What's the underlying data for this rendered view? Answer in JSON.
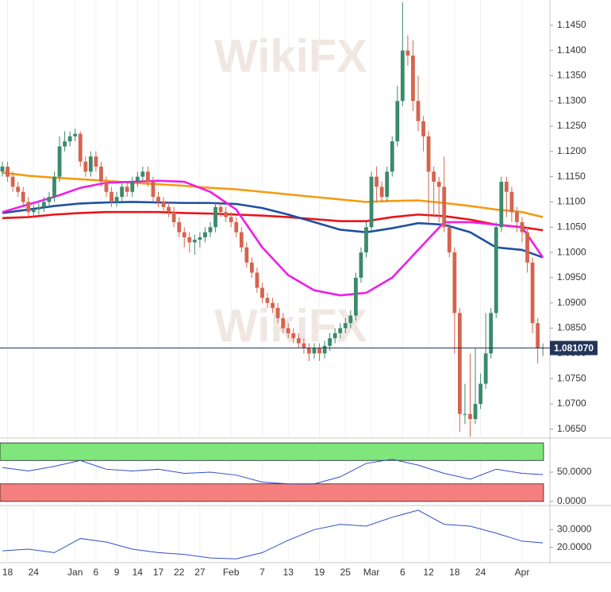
{
  "chart_data": {
    "type": "candlestick",
    "categories": [
      null,
      "18",
      null,
      null,
      null,
      null,
      "24",
      null,
      null,
      null,
      null,
      null,
      null,
      null,
      "Jan",
      null,
      null,
      null,
      "6",
      null,
      null,
      null,
      "9",
      null,
      null,
      null,
      "14",
      null,
      null,
      null,
      "17",
      null,
      null,
      null,
      "22",
      null,
      null,
      null,
      "27",
      null,
      null,
      null,
      null,
      null,
      "Feb",
      null,
      null,
      null,
      null,
      null,
      "7",
      null,
      null,
      null,
      null,
      "13",
      null,
      null,
      null,
      null,
      null,
      "19",
      null,
      null,
      null,
      null,
      "25",
      null,
      null,
      null,
      null,
      "Mar",
      null,
      null,
      null,
      null,
      null,
      "6",
      null,
      null,
      null,
      null,
      "12",
      null,
      null,
      null,
      null,
      "18",
      null,
      null,
      null,
      null,
      "24",
      null,
      null,
      null,
      null,
      null,
      null,
      null,
      "Apr",
      null,
      null,
      null,
      null
    ],
    "open": [
      1.116,
      1.117,
      1.115,
      1.113,
      1.112,
      1.11,
      1.108,
      1.1085,
      1.109,
      1.11,
      1.111,
      1.115,
      1.121,
      1.122,
      1.123,
      1.1235,
      1.118,
      1.116,
      1.119,
      1.117,
      1.114,
      1.112,
      1.11,
      1.111,
      1.113,
      1.112,
      1.114,
      1.115,
      1.116,
      1.114,
      1.111,
      1.11,
      1.109,
      1.108,
      1.106,
      1.104,
      1.103,
      1.102,
      1.1025,
      1.103,
      1.104,
      1.105,
      1.109,
      1.108,
      1.107,
      1.106,
      1.104,
      1.101,
      1.098,
      1.096,
      1.093,
      1.091,
      1.09,
      1.089,
      1.087,
      1.085,
      1.084,
      1.083,
      1.082,
      1.081,
      1.08,
      1.081,
      1.08,
      1.0815,
      1.083,
      1.084,
      1.085,
      1.086,
      1.0875,
      1.095,
      1.1,
      1.105,
      1.115,
      1.113,
      1.111,
      1.116,
      1.122,
      1.13,
      1.14,
      1.139,
      1.13,
      1.126,
      1.123,
      1.116,
      1.114,
      1.113,
      1.105,
      1.1,
      1.088,
      1.068,
      1.068,
      1.067,
      1.07,
      1.074,
      1.08,
      1.088,
      1.105,
      1.114,
      1.112,
      1.108,
      1.106,
      1.104,
      1.098,
      1.086,
      1.081
    ],
    "high": [
      1.118,
      1.118,
      1.116,
      1.114,
      1.113,
      1.111,
      1.1095,
      1.11,
      1.111,
      1.112,
      1.116,
      1.123,
      1.124,
      1.124,
      1.1245,
      1.124,
      1.119,
      1.12,
      1.12,
      1.118,
      1.115,
      1.113,
      1.112,
      1.114,
      1.114,
      1.115,
      1.116,
      1.117,
      1.117,
      1.115,
      1.112,
      1.111,
      1.11,
      1.109,
      1.107,
      1.105,
      1.104,
      1.1035,
      1.104,
      1.105,
      1.106,
      1.11,
      1.11,
      1.109,
      1.108,
      1.107,
      1.105,
      1.102,
      1.099,
      1.097,
      1.094,
      1.092,
      1.091,
      1.09,
      1.088,
      1.086,
      1.085,
      1.084,
      1.083,
      1.082,
      1.082,
      1.082,
      1.0825,
      1.084,
      1.085,
      1.086,
      1.087,
      1.0885,
      1.096,
      1.101,
      1.106,
      1.116,
      1.117,
      1.114,
      1.117,
      1.123,
      1.133,
      1.1495,
      1.143,
      1.142,
      1.135,
      1.127,
      1.124,
      1.117,
      1.115,
      1.119,
      1.106,
      1.101,
      1.089,
      1.074,
      1.08,
      1.081,
      1.076,
      1.088,
      1.089,
      1.106,
      1.115,
      1.115,
      1.113,
      1.109,
      1.107,
      1.105,
      1.099,
      1.087,
      1.082
    ],
    "low": [
      1.115,
      1.114,
      1.112,
      1.111,
      1.109,
      1.107,
      1.107,
      1.1075,
      1.108,
      1.109,
      1.11,
      1.114,
      1.12,
      1.121,
      1.122,
      1.117,
      1.115,
      1.115,
      1.116,
      1.113,
      1.111,
      1.109,
      1.109,
      1.11,
      1.111,
      1.111,
      1.113,
      1.114,
      1.113,
      1.11,
      1.109,
      1.108,
      1.107,
      1.105,
      1.103,
      1.101,
      1.1,
      1.0995,
      1.101,
      1.102,
      1.103,
      1.104,
      1.107,
      1.106,
      1.105,
      1.103,
      1.1,
      1.097,
      1.095,
      1.092,
      1.09,
      1.089,
      1.088,
      1.086,
      1.084,
      1.083,
      1.082,
      1.081,
      1.08,
      1.0785,
      1.079,
      1.0785,
      1.079,
      1.0805,
      1.082,
      1.083,
      1.084,
      1.085,
      1.0865,
      1.094,
      1.099,
      1.104,
      1.11,
      1.11,
      1.11,
      1.115,
      1.121,
      1.129,
      1.137,
      1.128,
      1.124,
      1.12,
      1.106,
      1.107,
      1.106,
      1.104,
      1.099,
      1.08,
      1.0645,
      1.066,
      1.0635,
      1.066,
      1.069,
      1.073,
      1.079,
      1.087,
      1.104,
      1.107,
      1.106,
      1.104,
      1.102,
      1.096,
      1.084,
      1.078,
      1.0795
    ],
    "close": [
      1.117,
      1.115,
      1.113,
      1.112,
      1.11,
      1.108,
      1.1085,
      1.109,
      1.11,
      1.111,
      1.115,
      1.121,
      1.122,
      1.123,
      1.1235,
      1.118,
      1.116,
      1.119,
      1.117,
      1.114,
      1.112,
      1.11,
      1.111,
      1.113,
      1.112,
      1.114,
      1.115,
      1.116,
      1.114,
      1.111,
      1.11,
      1.109,
      1.108,
      1.106,
      1.104,
      1.103,
      1.102,
      1.1025,
      1.103,
      1.104,
      1.105,
      1.109,
      1.108,
      1.107,
      1.106,
      1.104,
      1.101,
      1.098,
      1.096,
      1.093,
      1.091,
      1.09,
      1.089,
      1.087,
      1.085,
      1.084,
      1.083,
      1.082,
      1.081,
      1.08,
      1.081,
      1.08,
      1.0815,
      1.083,
      1.084,
      1.085,
      1.086,
      1.0875,
      1.095,
      1.1,
      1.105,
      1.115,
      1.113,
      1.111,
      1.116,
      1.122,
      1.13,
      1.14,
      1.139,
      1.13,
      1.126,
      1.123,
      1.116,
      1.114,
      1.113,
      1.105,
      1.1,
      1.088,
      1.068,
      1.068,
      1.067,
      1.07,
      1.074,
      1.08,
      1.088,
      1.105,
      1.114,
      1.112,
      1.108,
      1.106,
      1.104,
      1.098,
      1.086,
      1.081,
      1.0811
    ],
    "up_color": "#3b8a6c",
    "down_color": "#d5644f",
    "ylim": [
      1.06355,
      1.15
    ],
    "yticks": [
      {
        "value": 1.065,
        "label": "1.0650"
      },
      {
        "value": 1.07,
        "label": "1.0700"
      },
      {
        "value": 1.075,
        "label": "1.0750"
      },
      {
        "value": 1.08,
        "label": "1.0800"
      },
      {
        "value": 1.085,
        "label": "1.0850"
      },
      {
        "value": 1.09,
        "label": "1.0900"
      },
      {
        "value": 1.095,
        "label": "1.0950"
      },
      {
        "value": 1.1,
        "label": "1.1000"
      },
      {
        "value": 1.105,
        "label": "1.1050"
      },
      {
        "value": 1.11,
        "label": "1.1100"
      },
      {
        "value": 1.115,
        "label": "1.1150"
      },
      {
        "value": 1.12,
        "label": "1.1200"
      },
      {
        "value": 1.125,
        "label": "1.1250"
      },
      {
        "value": 1.13,
        "label": "1.1300"
      },
      {
        "value": 1.135,
        "label": "1.1350"
      },
      {
        "value": 1.14,
        "label": "1.1400"
      },
      {
        "value": 1.145,
        "label": "1.1450"
      }
    ],
    "last_price": {
      "value": 1.08107,
      "label": "1.081070",
      "color": "#23355a"
    },
    "watermark": "WikiFX",
    "overlays": {
      "x": [
        0,
        5,
        10,
        15,
        20,
        25,
        30,
        35,
        40,
        45,
        50,
        55,
        60,
        65,
        70,
        75,
        80,
        85,
        90,
        95,
        100,
        104
      ],
      "series": [
        {
          "color": "#f39c12",
          "values": [
            1.1158,
            1.1152,
            1.1148,
            1.1145,
            1.1142,
            1.1138,
            1.1135,
            1.1132,
            1.1128,
            1.1125,
            1.112,
            1.1115,
            1.111,
            1.1105,
            1.11,
            1.1102,
            1.1103,
            1.1098,
            1.1092,
            1.1085,
            1.108,
            1.107
          ]
        },
        {
          "color": "#e8141b",
          "values": [
            1.1068,
            1.107,
            1.1075,
            1.1078,
            1.108,
            1.108,
            1.108,
            1.1078,
            1.1077,
            1.1075,
            1.1073,
            1.107,
            1.1066,
            1.1062,
            1.1062,
            1.107,
            1.1075,
            1.1072,
            1.1065,
            1.1055,
            1.105,
            1.1044
          ]
        },
        {
          "color": "#1f4fa0",
          "values": [
            1.1078,
            1.1085,
            1.1092,
            1.1097,
            1.1099,
            1.11,
            1.1099,
            1.1098,
            1.1098,
            1.1096,
            1.1088,
            1.1075,
            1.106,
            1.1045,
            1.104,
            1.1048,
            1.1058,
            1.1055,
            1.104,
            1.101,
            1.1005,
            1.099
          ]
        },
        {
          "color": "#f01ce8",
          "values": [
            1.108,
            1.1095,
            1.111,
            1.1128,
            1.1138,
            1.114,
            1.1142,
            1.114,
            1.112,
            1.1085,
            1.101,
            1.0955,
            1.0925,
            1.0915,
            1.092,
            1.095,
            1.1005,
            1.106,
            1.106,
            1.1055,
            1.105,
            1.099
          ]
        }
      ]
    },
    "panels": [
      {
        "type": "line",
        "x": [
          0,
          5,
          10,
          15,
          20,
          25,
          30,
          35,
          40,
          45,
          50,
          55,
          60,
          65,
          70,
          75,
          80,
          85,
          90,
          95,
          100,
          104
        ],
        "color": "#2f4fc8",
        "values": [
          58,
          52,
          60,
          70,
          55,
          52,
          55,
          48,
          50,
          45,
          33,
          30,
          30,
          42,
          65,
          72,
          62,
          48,
          38,
          55,
          48,
          46
        ],
        "ylim": [
          -2.9,
          102.9
        ],
        "yticks": [
          {
            "value": 0,
            "label": "0.0000"
          },
          {
            "value": 50,
            "label": "50.0000"
          }
        ],
        "bands": [
          {
            "range": [
              70,
              100
            ],
            "color": "#7ee67a"
          },
          {
            "range": [
              0,
              30
            ],
            "color": "#f57f7f"
          }
        ]
      },
      {
        "type": "line",
        "x": [
          0,
          5,
          10,
          15,
          20,
          25,
          30,
          35,
          40,
          45,
          50,
          55,
          60,
          65,
          70,
          75,
          80,
          85,
          90,
          95,
          100,
          104
        ],
        "color": "#2f4fc8",
        "values": [
          18,
          19,
          17,
          25,
          23,
          19,
          17,
          16,
          14,
          13.5,
          17,
          24,
          30,
          33,
          32,
          37,
          41,
          33,
          32,
          28,
          23.5,
          22.5
        ],
        "ylim": [
          12.7,
          42.3
        ],
        "yticks": [
          {
            "value": 20,
            "label": "20.0000"
          },
          {
            "value": 30,
            "label": "30.0000"
          }
        ]
      }
    ]
  }
}
